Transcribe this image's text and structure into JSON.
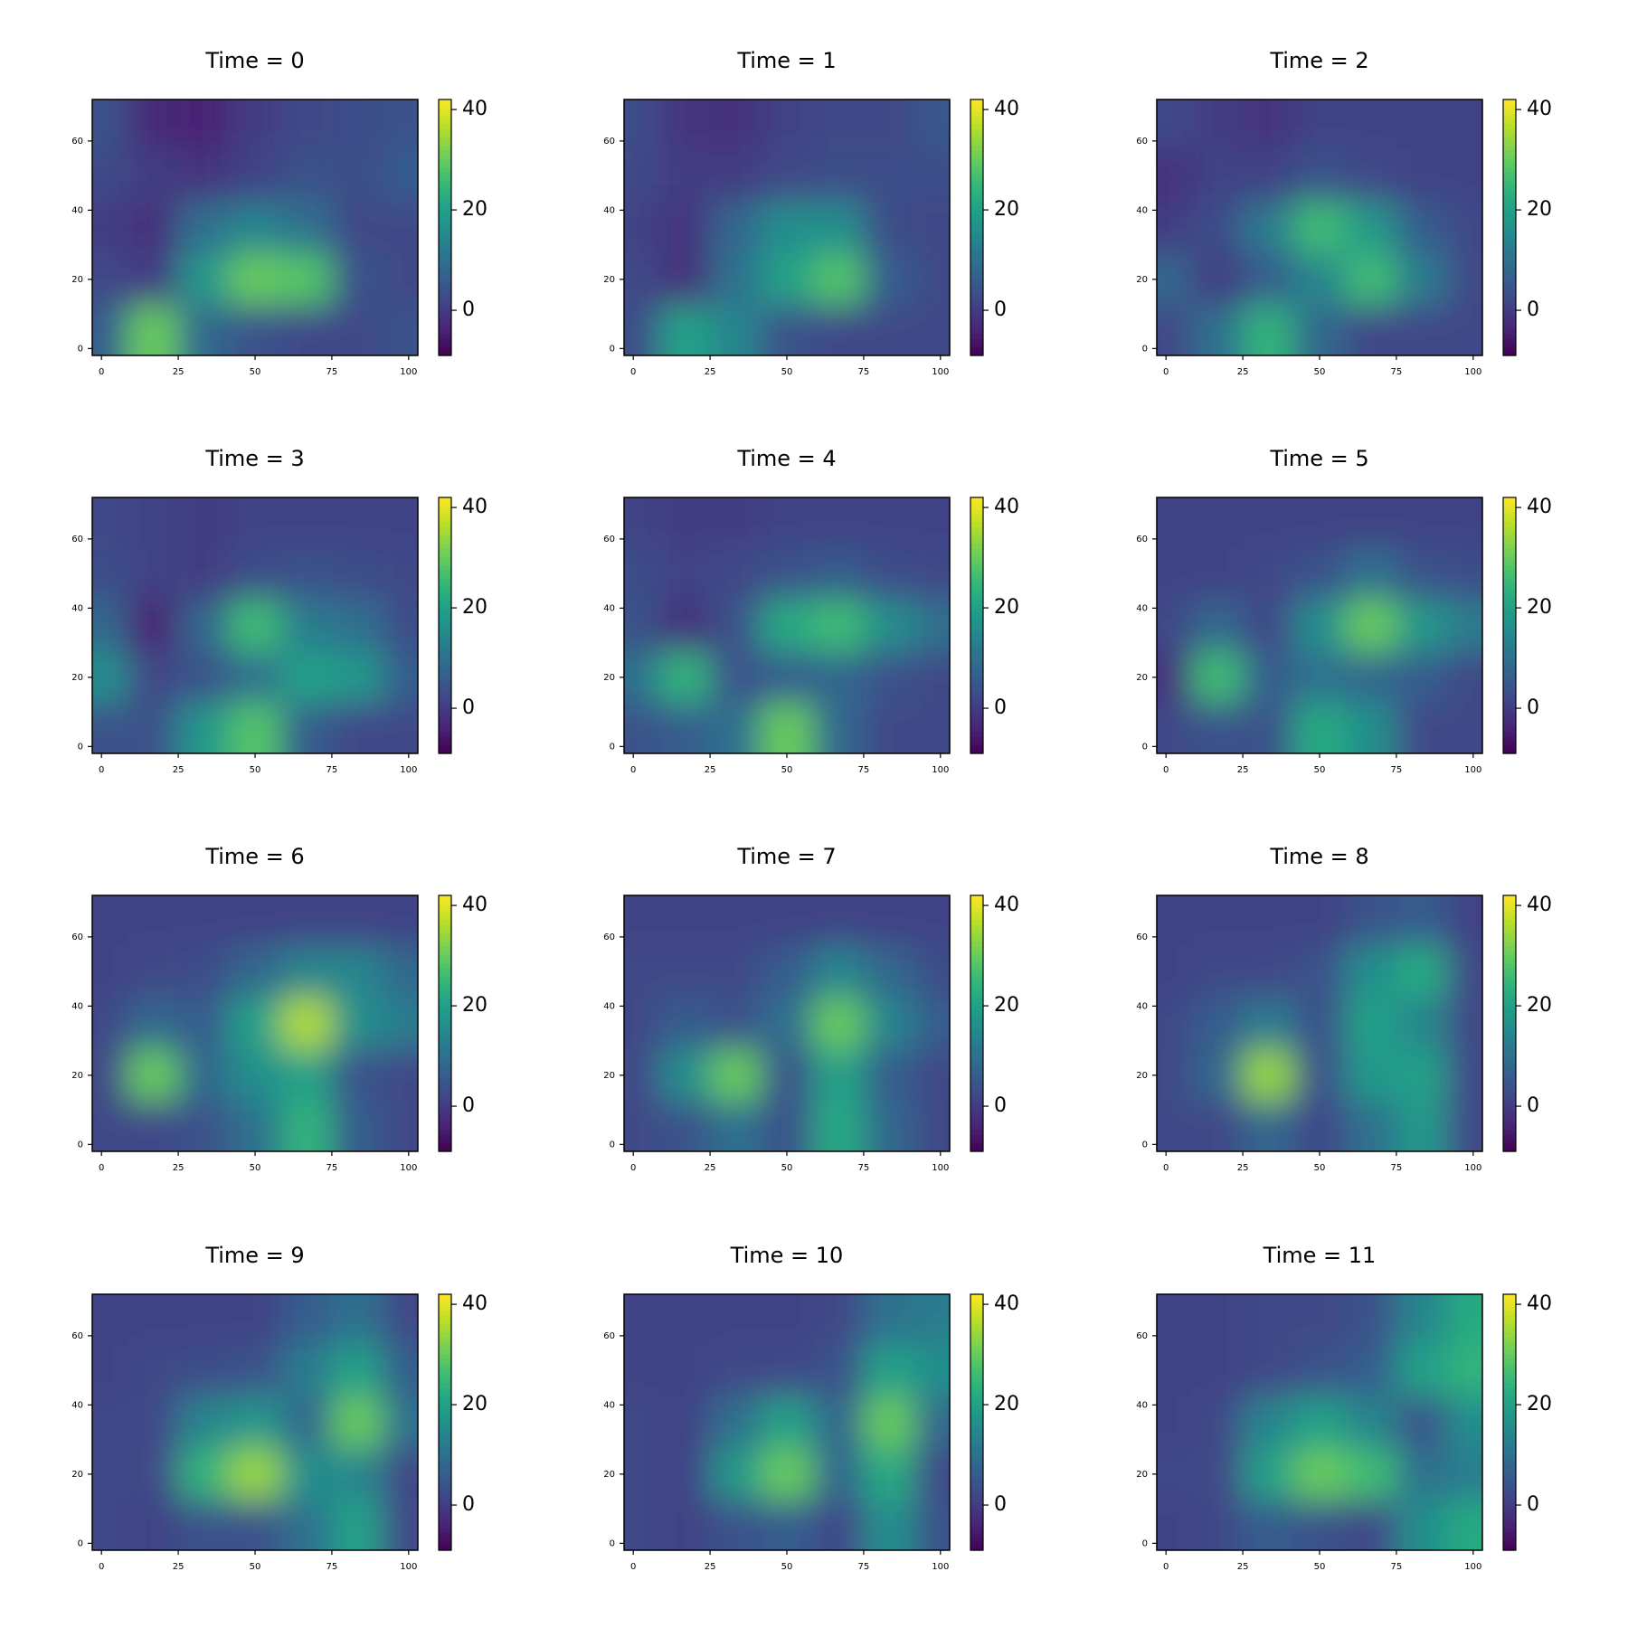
{
  "chart_data": [
    {
      "type": "heatmap",
      "title": "Time = 0",
      "colormap": "viridis",
      "x": [
        0,
        17,
        33,
        50,
        67,
        83,
        100
      ],
      "y": [
        65,
        50,
        35,
        20,
        5
      ],
      "values": [
        [
          4,
          -3,
          -4,
          0,
          2,
          3,
          4
        ],
        [
          2,
          0,
          -1,
          1,
          4,
          3,
          6
        ],
        [
          0,
          -2,
          10,
          14,
          10,
          2,
          2
        ],
        [
          2,
          0,
          18,
          30,
          28,
          4,
          2
        ],
        [
          6,
          30,
          8,
          4,
          2,
          2,
          4
        ]
      ],
      "xlim": [
        -3,
        103
      ],
      "ylim": [
        -2,
        72
      ],
      "xticks": [
        0,
        25,
        50,
        75,
        100
      ],
      "yticks": [
        0,
        20,
        40,
        60
      ],
      "clim": [
        -9,
        42
      ],
      "cticks": [
        0,
        20,
        40
      ]
    },
    {
      "type": "heatmap",
      "title": "Time = 1",
      "colormap": "viridis",
      "x": [
        0,
        17,
        33,
        50,
        67,
        83,
        100
      ],
      "y": [
        65,
        50,
        35,
        20,
        5
      ],
      "values": [
        [
          3,
          -1,
          -2,
          1,
          2,
          2,
          5
        ],
        [
          2,
          0,
          0,
          2,
          3,
          3,
          3
        ],
        [
          1,
          -1,
          8,
          16,
          16,
          3,
          2
        ],
        [
          2,
          -2,
          10,
          20,
          28,
          6,
          2
        ],
        [
          3,
          20,
          14,
          4,
          2,
          2,
          2
        ]
      ],
      "xlim": [
        -3,
        103
      ],
      "ylim": [
        -2,
        72
      ],
      "xticks": [
        0,
        25,
        50,
        75,
        100
      ],
      "yticks": [
        0,
        20,
        40,
        60
      ],
      "clim": [
        -9,
        42
      ],
      "cticks": [
        0,
        20,
        40
      ]
    },
    {
      "type": "heatmap",
      "title": "Time = 2",
      "colormap": "viridis",
      "x": [
        0,
        17,
        33,
        50,
        67,
        83,
        100
      ],
      "y": [
        65,
        50,
        35,
        20,
        5
      ],
      "values": [
        [
          2,
          0,
          -1,
          1,
          1,
          1,
          1
        ],
        [
          -2,
          1,
          1,
          4,
          2,
          1,
          1
        ],
        [
          0,
          3,
          12,
          26,
          18,
          6,
          2
        ],
        [
          8,
          0,
          6,
          14,
          26,
          12,
          2
        ],
        [
          2,
          10,
          24,
          8,
          2,
          2,
          2
        ]
      ],
      "xlim": [
        -3,
        103
      ],
      "ylim": [
        -2,
        72
      ],
      "xticks": [
        0,
        25,
        50,
        75,
        100
      ],
      "yticks": [
        0,
        20,
        40,
        60
      ],
      "clim": [
        -9,
        42
      ],
      "cticks": [
        0,
        20,
        40
      ]
    },
    {
      "type": "heatmap",
      "title": "Time = 3",
      "colormap": "viridis",
      "x": [
        0,
        17,
        33,
        50,
        67,
        83,
        100
      ],
      "y": [
        65,
        50,
        35,
        20,
        5
      ],
      "values": [
        [
          2,
          1,
          0,
          1,
          1,
          1,
          1
        ],
        [
          3,
          1,
          0,
          3,
          4,
          3,
          2
        ],
        [
          8,
          -4,
          8,
          26,
          12,
          10,
          3
        ],
        [
          16,
          2,
          4,
          10,
          20,
          18,
          6
        ],
        [
          4,
          4,
          18,
          28,
          6,
          2,
          2
        ]
      ],
      "xlim": [
        -3,
        103
      ],
      "ylim": [
        -2,
        72
      ],
      "xticks": [
        0,
        25,
        50,
        75,
        100
      ],
      "yticks": [
        0,
        20,
        40,
        60
      ],
      "clim": [
        -9,
        42
      ],
      "cticks": [
        0,
        20,
        40
      ]
    },
    {
      "type": "heatmap",
      "title": "Time = 4",
      "colormap": "viridis",
      "x": [
        0,
        17,
        33,
        50,
        67,
        83,
        100
      ],
      "y": [
        65,
        50,
        35,
        20,
        5
      ],
      "values": [
        [
          1,
          0,
          0,
          1,
          1,
          1,
          1
        ],
        [
          3,
          1,
          2,
          4,
          6,
          3,
          2
        ],
        [
          4,
          -2,
          4,
          22,
          26,
          16,
          10
        ],
        [
          10,
          24,
          4,
          6,
          8,
          4,
          2
        ],
        [
          4,
          6,
          10,
          30,
          8,
          2,
          2
        ]
      ],
      "xlim": [
        -3,
        103
      ],
      "ylim": [
        -2,
        72
      ],
      "xticks": [
        0,
        25,
        50,
        75,
        100
      ],
      "yticks": [
        0,
        20,
        40,
        60
      ],
      "clim": [
        -9,
        42
      ],
      "cticks": [
        0,
        20,
        40
      ]
    },
    {
      "type": "heatmap",
      "title": "Time = 5",
      "colormap": "viridis",
      "x": [
        0,
        17,
        33,
        50,
        67,
        83,
        100
      ],
      "y": [
        65,
        50,
        35,
        20,
        5
      ],
      "values": [
        [
          1,
          1,
          1,
          1,
          1,
          1,
          1
        ],
        [
          1,
          1,
          2,
          4,
          10,
          4,
          3
        ],
        [
          2,
          8,
          2,
          16,
          30,
          18,
          12
        ],
        [
          -2,
          26,
          6,
          10,
          8,
          6,
          2
        ],
        [
          2,
          4,
          4,
          22,
          16,
          2,
          2
        ]
      ],
      "xlim": [
        -3,
        103
      ],
      "ylim": [
        -2,
        72
      ],
      "xticks": [
        0,
        25,
        50,
        75,
        100
      ],
      "yticks": [
        0,
        20,
        40,
        60
      ],
      "clim": [
        -9,
        42
      ],
      "cticks": [
        0,
        20,
        40
      ]
    },
    {
      "type": "heatmap",
      "title": "Time = 6",
      "colormap": "viridis",
      "x": [
        0,
        17,
        33,
        50,
        67,
        83,
        100
      ],
      "y": [
        65,
        50,
        35,
        20,
        5
      ],
      "values": [
        [
          1,
          1,
          1,
          1,
          1,
          1,
          1
        ],
        [
          1,
          2,
          3,
          8,
          14,
          14,
          8
        ],
        [
          2,
          8,
          6,
          20,
          36,
          16,
          12
        ],
        [
          2,
          30,
          8,
          16,
          20,
          4,
          2
        ],
        [
          2,
          2,
          4,
          10,
          24,
          6,
          2
        ]
      ],
      "xlim": [
        -3,
        103
      ],
      "ylim": [
        -2,
        72
      ],
      "xticks": [
        0,
        25,
        50,
        75,
        100
      ],
      "yticks": [
        0,
        20,
        40,
        60
      ],
      "clim": [
        -9,
        42
      ],
      "cticks": [
        0,
        20,
        40
      ]
    },
    {
      "type": "heatmap",
      "title": "Time = 7",
      "colormap": "viridis",
      "x": [
        0,
        17,
        33,
        50,
        67,
        83,
        100
      ],
      "y": [
        65,
        50,
        35,
        20,
        5
      ],
      "values": [
        [
          1,
          1,
          1,
          1,
          1,
          1,
          1
        ],
        [
          2,
          2,
          2,
          6,
          14,
          8,
          3
        ],
        [
          2,
          6,
          4,
          10,
          30,
          14,
          6
        ],
        [
          2,
          16,
          30,
          4,
          20,
          6,
          2
        ],
        [
          2,
          4,
          10,
          4,
          22,
          8,
          2
        ]
      ],
      "xlim": [
        -3,
        103
      ],
      "ylim": [
        -2,
        72
      ],
      "xticks": [
        0,
        25,
        50,
        75,
        100
      ],
      "yticks": [
        0,
        20,
        40,
        60
      ],
      "clim": [
        -9,
        42
      ],
      "cticks": [
        0,
        20,
        40
      ]
    },
    {
      "type": "heatmap",
      "title": "Time = 8",
      "colormap": "viridis",
      "x": [
        0,
        17,
        33,
        50,
        67,
        83,
        100
      ],
      "y": [
        65,
        50,
        35,
        20,
        5
      ],
      "values": [
        [
          1,
          1,
          1,
          1,
          4,
          6,
          1
        ],
        [
          1,
          2,
          2,
          4,
          16,
          22,
          2
        ],
        [
          2,
          6,
          12,
          4,
          20,
          14,
          2
        ],
        [
          2,
          8,
          34,
          4,
          18,
          20,
          2
        ],
        [
          2,
          2,
          8,
          2,
          10,
          18,
          2
        ]
      ],
      "xlim": [
        -3,
        103
      ],
      "ylim": [
        -2,
        72
      ],
      "xticks": [
        0,
        25,
        50,
        75,
        100
      ],
      "yticks": [
        0,
        20,
        40,
        60
      ],
      "clim": [
        -9,
        42
      ],
      "cticks": [
        0,
        20,
        40
      ]
    },
    {
      "type": "heatmap",
      "title": "Time = 9",
      "colormap": "viridis",
      "x": [
        0,
        17,
        33,
        50,
        67,
        83,
        100
      ],
      "y": [
        65,
        50,
        35,
        20,
        5
      ],
      "values": [
        [
          1,
          1,
          1,
          1,
          6,
          10,
          2
        ],
        [
          1,
          2,
          3,
          4,
          12,
          20,
          6
        ],
        [
          2,
          2,
          14,
          18,
          8,
          30,
          10
        ],
        [
          2,
          2,
          24,
          34,
          16,
          14,
          2
        ],
        [
          2,
          1,
          4,
          4,
          10,
          20,
          2
        ]
      ],
      "xlim": [
        -3,
        103
      ],
      "ylim": [
        -2,
        72
      ],
      "xticks": [
        0,
        25,
        50,
        75,
        100
      ],
      "yticks": [
        0,
        20,
        40,
        60
      ],
      "clim": [
        -9,
        42
      ],
      "cticks": [
        0,
        20,
        40
      ]
    },
    {
      "type": "heatmap",
      "title": "Time = 10",
      "colormap": "viridis",
      "x": [
        0,
        17,
        33,
        50,
        67,
        83,
        100
      ],
      "y": [
        65,
        50,
        35,
        20,
        5
      ],
      "values": [
        [
          1,
          1,
          1,
          1,
          2,
          10,
          12
        ],
        [
          1,
          1,
          2,
          2,
          4,
          20,
          16
        ],
        [
          2,
          1,
          10,
          20,
          8,
          30,
          8
        ],
        [
          2,
          1,
          18,
          30,
          8,
          22,
          2
        ],
        [
          2,
          1,
          4,
          6,
          2,
          16,
          4
        ]
      ],
      "xlim": [
        -3,
        103
      ],
      "ylim": [
        -2,
        72
      ],
      "xticks": [
        0,
        25,
        50,
        75,
        100
      ],
      "yticks": [
        0,
        20,
        40,
        60
      ],
      "clim": [
        -9,
        42
      ],
      "cticks": [
        0,
        20,
        40
      ]
    },
    {
      "type": "heatmap",
      "title": "Time = 11",
      "colormap": "viridis",
      "x": [
        0,
        17,
        33,
        50,
        67,
        83,
        100
      ],
      "y": [
        65,
        50,
        35,
        20,
        5
      ],
      "values": [
        [
          1,
          1,
          2,
          2,
          4,
          14,
          22
        ],
        [
          1,
          1,
          2,
          4,
          6,
          20,
          24
        ],
        [
          1,
          2,
          14,
          20,
          14,
          4,
          16
        ],
        [
          2,
          2,
          20,
          30,
          26,
          10,
          12
        ],
        [
          1,
          2,
          6,
          4,
          2,
          16,
          22
        ]
      ],
      "xlim": [
        -3,
        103
      ],
      "ylim": [
        -2,
        72
      ],
      "xticks": [
        0,
        25,
        50,
        75,
        100
      ],
      "yticks": [
        0,
        20,
        40,
        60
      ],
      "clim": [
        -9,
        42
      ],
      "cticks": [
        0,
        20,
        40
      ]
    }
  ]
}
